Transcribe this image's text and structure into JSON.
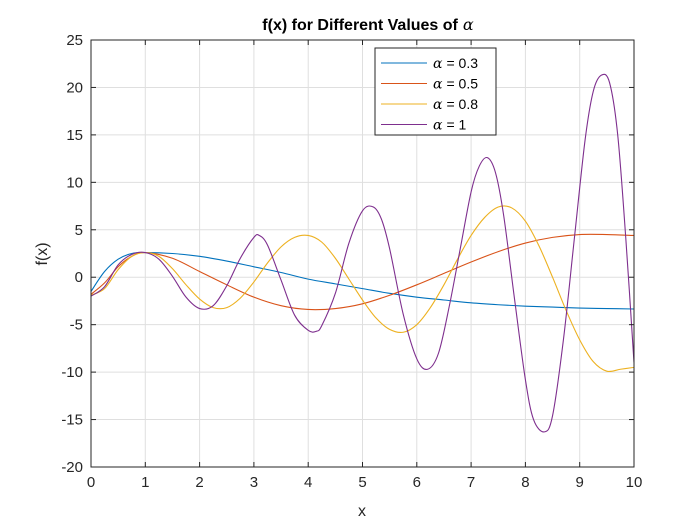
{
  "chart_data": {
    "type": "line",
    "title": "f(x) for Different Values of",
    "title_symbol": "α",
    "xlabel": "x",
    "ylabel": "f(x)",
    "xlim": [
      0,
      10
    ],
    "ylim": [
      -20,
      25
    ],
    "xticks": [
      0,
      1,
      2,
      3,
      4,
      5,
      6,
      7,
      8,
      9,
      10
    ],
    "yticks": [
      -20,
      -15,
      -10,
      -5,
      0,
      5,
      10,
      15,
      20,
      25
    ],
    "xtick_labels": [
      "0",
      "1",
      "2",
      "3",
      "4",
      "5",
      "6",
      "7",
      "8",
      "9",
      "10"
    ],
    "ytick_labels": [
      "-20",
      "-15",
      "-10",
      "-5",
      "0",
      "5",
      "10",
      "15",
      "20",
      "25"
    ],
    "grid": true,
    "legend_position": "top-right",
    "series": [
      {
        "name": "α = 0.3",
        "symbol": "α",
        "label": "= 0.3",
        "color": "#0072BD",
        "x": [
          0,
          0.25,
          0.5,
          0.75,
          1,
          1.5,
          2,
          2.5,
          3,
          3.5,
          4,
          4.5,
          5,
          5.5,
          6,
          6.5,
          7,
          7.5,
          8,
          8.5,
          9,
          9.5,
          10
        ],
        "y": [
          -1.5,
          0.6,
          1.9,
          2.5,
          2.6,
          2.5,
          2.2,
          1.7,
          1.1,
          0.5,
          -0.2,
          -0.7,
          -1.2,
          -1.7,
          -2.1,
          -2.4,
          -2.7,
          -2.9,
          -3.05,
          -3.15,
          -3.25,
          -3.3,
          -3.35
        ]
      },
      {
        "name": "α = 0.5",
        "symbol": "α",
        "label": "= 0.5",
        "color": "#D95319",
        "x": [
          0,
          0.25,
          0.5,
          0.75,
          1,
          1.5,
          2,
          2.5,
          3,
          3.5,
          4,
          4.5,
          5,
          5.5,
          6,
          6.5,
          7,
          7.5,
          8,
          8.5,
          9,
          9.5,
          10
        ],
        "y": [
          -1.8,
          -0.6,
          1.1,
          2.2,
          2.6,
          2.0,
          0.6,
          -0.8,
          -2.1,
          -3.0,
          -3.4,
          -3.3,
          -2.8,
          -1.9,
          -0.8,
          0.4,
          1.6,
          2.7,
          3.6,
          4.2,
          4.5,
          4.5,
          4.4
        ]
      },
      {
        "name": "α = 0.8",
        "symbol": "α",
        "label": "= 0.8",
        "color": "#EDB120",
        "x": [
          0,
          0.25,
          0.5,
          0.75,
          1,
          1.25,
          1.5,
          1.75,
          2,
          2.25,
          2.5,
          2.75,
          3,
          3.25,
          3.5,
          3.75,
          4,
          4.25,
          4.5,
          4.75,
          5,
          5.25,
          5.5,
          5.75,
          6,
          6.25,
          6.5,
          6.75,
          7,
          7.25,
          7.5,
          7.75,
          8,
          8.25,
          8.5,
          8.75,
          9,
          9.25,
          9.5,
          9.75,
          10
        ],
        "y": [
          -1.9,
          -1.2,
          0.8,
          2.2,
          2.6,
          2.2,
          0.9,
          -0.8,
          -2.3,
          -3.2,
          -3.2,
          -2.2,
          -0.5,
          1.5,
          3.2,
          4.2,
          4.4,
          3.7,
          2.0,
          -0.2,
          -2.4,
          -4.3,
          -5.5,
          -5.8,
          -5.0,
          -3.2,
          -0.8,
          1.9,
          4.4,
          6.3,
          7.4,
          7.3,
          5.9,
          3.3,
          0.0,
          -3.5,
          -6.6,
          -8.9,
          -9.9,
          -9.7,
          -9.5
        ]
      },
      {
        "name": "α = 1",
        "symbol": "α",
        "label": "= 1",
        "color": "#7E2F8E",
        "x": [
          0,
          0.25,
          0.5,
          0.75,
          1,
          1.25,
          1.5,
          1.75,
          2,
          2.25,
          2.5,
          2.75,
          3,
          3.1,
          3.25,
          3.5,
          3.75,
          4,
          4.15,
          4.25,
          4.5,
          4.75,
          5,
          5.2,
          5.35,
          5.5,
          5.75,
          6,
          6.2,
          6.4,
          6.6,
          6.8,
          7,
          7.15,
          7.3,
          7.45,
          7.6,
          7.8,
          8.0,
          8.15,
          8.35,
          8.5,
          8.7,
          8.9,
          9.1,
          9.25,
          9.4,
          9.55,
          9.7,
          9.85,
          10
        ],
        "y": [
          -2.0,
          -1.0,
          1.3,
          2.4,
          2.6,
          1.9,
          0.1,
          -2.1,
          -3.3,
          -3.0,
          -0.9,
          2.0,
          4.2,
          4.4,
          3.4,
          -0.3,
          -4.0,
          -5.6,
          -5.7,
          -5.1,
          -1.7,
          3.6,
          7.0,
          7.4,
          6.1,
          3.0,
          -3.9,
          -8.6,
          -9.7,
          -8.0,
          -3.0,
          3.0,
          9.0,
          11.7,
          12.6,
          11.0,
          6.5,
          -2.3,
          -10.8,
          -15.0,
          -16.3,
          -14.6,
          -6.6,
          4.0,
          14.5,
          19.6,
          21.3,
          20.5,
          15.0,
          4.0,
          -9.0
        ]
      }
    ]
  }
}
